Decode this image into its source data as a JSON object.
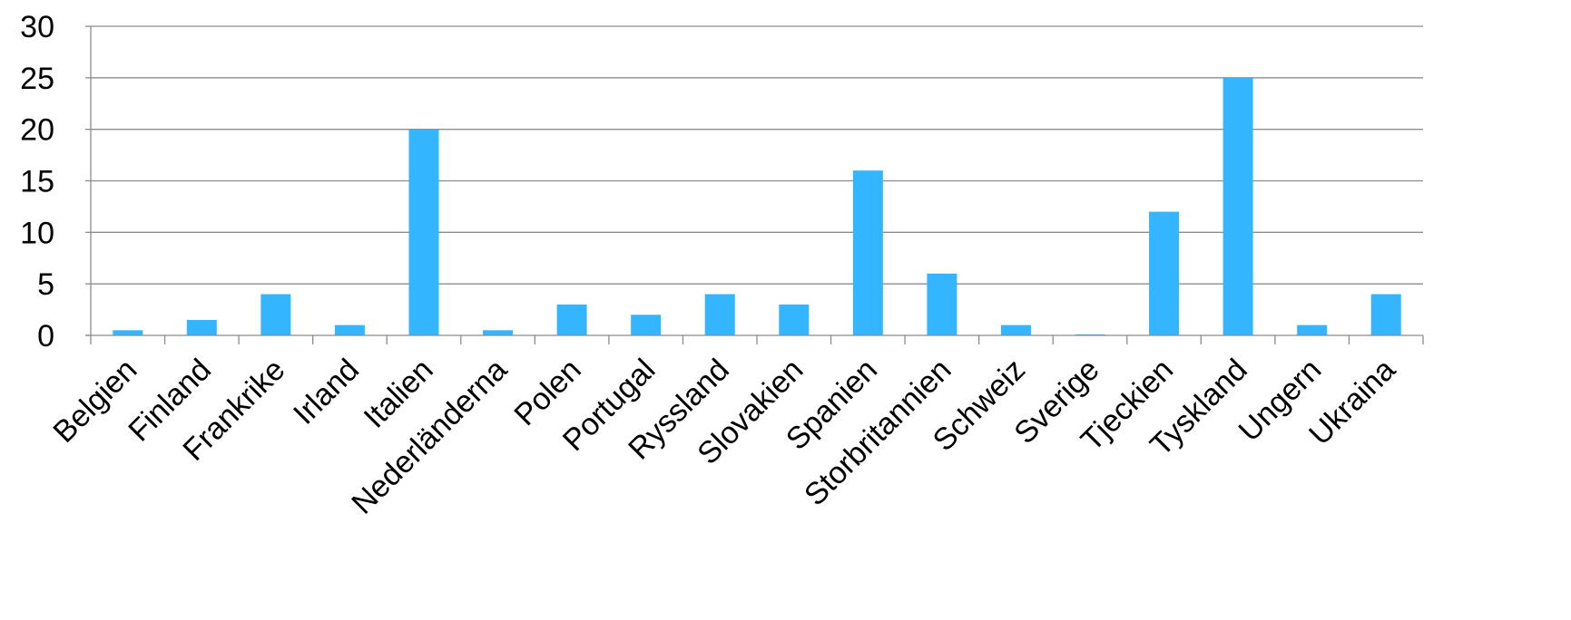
{
  "chart_data": {
    "type": "bar",
    "title": "",
    "xlabel": "",
    "ylabel": "",
    "categories": [
      "Belgien",
      "Finland",
      "Frankrike",
      "Irland",
      "Italien",
      "Nederländerna",
      "Polen",
      "Portugal",
      "Ryssland",
      "Slovakien",
      "Spanien",
      "Storbritannien",
      "Schweiz",
      "Sverige",
      "Tjeckien",
      "Tyskland",
      "Ungern",
      "Ukraina"
    ],
    "values": [
      0.5,
      1.5,
      4,
      1,
      20,
      0.5,
      3,
      2,
      4,
      3,
      16,
      6,
      1,
      0.1,
      12,
      25,
      1,
      4
    ],
    "ylim": [
      0,
      30
    ],
    "yticks": [
      "0",
      "5",
      "10",
      "15",
      "20",
      "25",
      "30"
    ],
    "grid": true,
    "legend": "none",
    "colors": {
      "bar": "#33b5ff",
      "grid": "#8c8c8c"
    }
  }
}
